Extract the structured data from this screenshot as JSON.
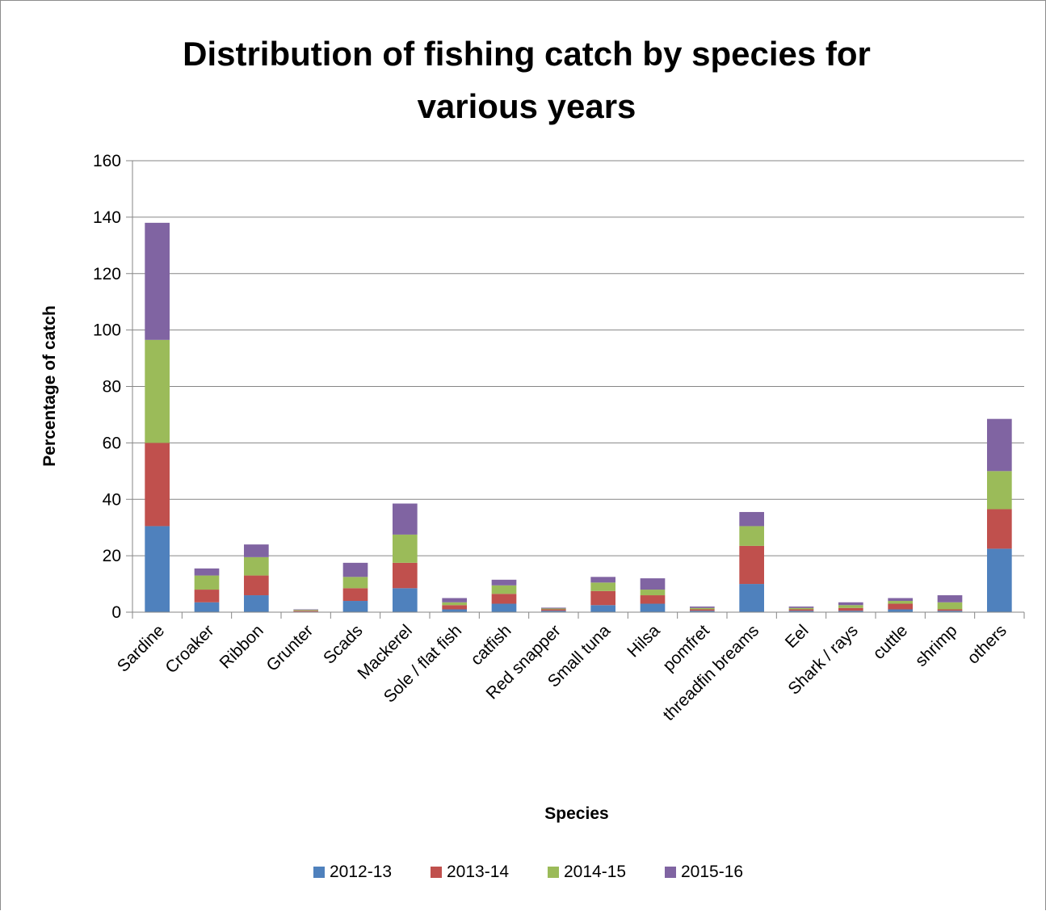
{
  "chart_data": {
    "type": "bar",
    "stacked": true,
    "title_lines": [
      "Distribution of fishing catch by species for",
      "various years"
    ],
    "xlabel": "Species",
    "ylabel": "Percentage of catch",
    "ylim": [
      0,
      160
    ],
    "yticks": [
      0,
      20,
      40,
      60,
      80,
      100,
      120,
      140,
      160
    ],
    "grid": true,
    "legend_position": "bottom",
    "categories": [
      "Sardine",
      "Croaker",
      "Ribbon",
      "Grunter",
      "Scads",
      "Mackerel",
      "Sole / flat fish",
      "catfish",
      "Red snapper",
      "Small tuna",
      "Hilsa",
      "pomfret",
      "threadfin breams",
      "Eel",
      "Shark / rays",
      "cuttle",
      "shrimp",
      "others"
    ],
    "series": [
      {
        "name": "2012-13",
        "color": "#4f81bd",
        "values": [
          30.5,
          3.5,
          6,
          0.2,
          4,
          8.5,
          1,
          3,
          0.5,
          2.5,
          3,
          0.5,
          10,
          0.5,
          0.5,
          1,
          0.5,
          22.5
        ]
      },
      {
        "name": "2013-14",
        "color": "#c0504d",
        "values": [
          29.5,
          4.5,
          7,
          0.3,
          4.5,
          9,
          1.5,
          3.5,
          0.5,
          5,
          3,
          0.5,
          13.5,
          0.5,
          1,
          2,
          0.5,
          14
        ]
      },
      {
        "name": "2014-15",
        "color": "#9bbb59",
        "values": [
          36.5,
          5,
          6.5,
          0.3,
          4,
          10,
          1,
          3,
          0.3,
          3,
          2,
          0.5,
          7,
          0.5,
          1,
          1,
          2.5,
          13.5
        ]
      },
      {
        "name": "2015-16",
        "color": "#8064a2",
        "values": [
          41.5,
          2.5,
          4.5,
          0.2,
          5,
          11,
          1.5,
          2,
          0.3,
          2,
          4,
          0.5,
          5,
          0.5,
          1,
          1,
          2.5,
          18.5
        ]
      }
    ]
  }
}
